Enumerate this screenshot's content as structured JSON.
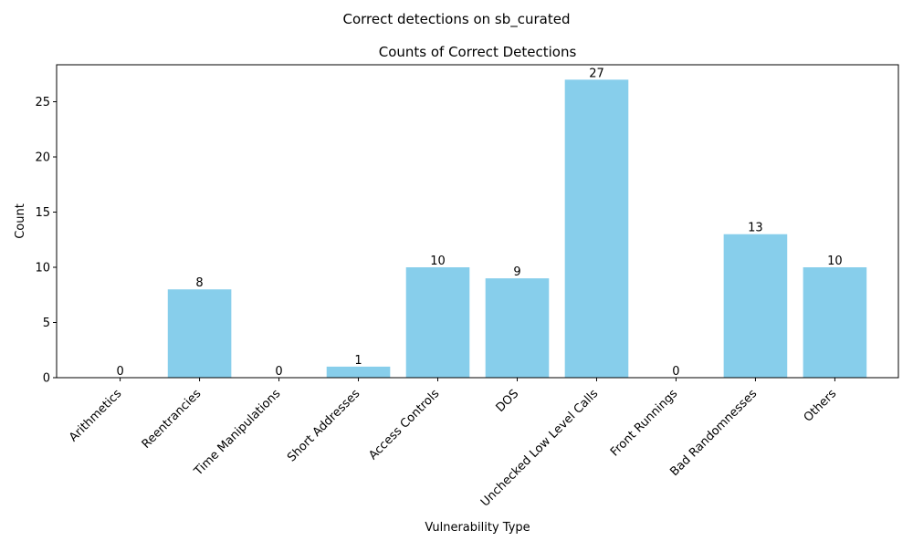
{
  "chart_data": {
    "type": "bar",
    "suptitle": "Correct detections on sb_curated",
    "title": "Counts of Correct Detections",
    "xlabel": "Vulnerability Type",
    "ylabel": "Count",
    "categories": [
      "Arithmetics",
      "Reentrancies",
      "Time Manipulations",
      "Short Addresses",
      "Access Controls",
      "DOS",
      "Unchecked Low Level Calls",
      "Front Runnings",
      "Bad Randomnesses",
      "Others"
    ],
    "values": [
      0,
      8,
      0,
      1,
      10,
      9,
      27,
      0,
      13,
      10
    ],
    "ylim": [
      0,
      28.35
    ],
    "yticks": [
      0,
      5,
      10,
      15,
      20,
      25
    ],
    "bar_color": "#87CEEB",
    "grid": false,
    "legend": "none",
    "data_labels": true
  }
}
